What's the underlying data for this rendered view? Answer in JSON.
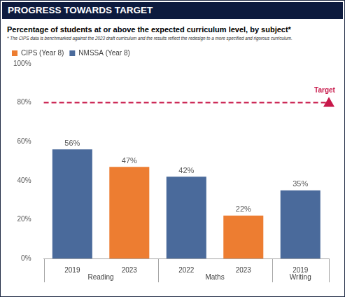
{
  "chart_data": {
    "type": "bar",
    "header": "PROGRESS TOWARDS TARGET",
    "title": "Percentage of students at or above the expected curriculum level, by subject*",
    "footnote": "* The CIPS data is benchmarked against the 2023 draft curriculum and the results reflect the redesign to a more specified and rigorous curriculum.",
    "categories": [
      "2019",
      "2023",
      "2022",
      "2023",
      "2019"
    ],
    "category_groups": [
      "Reading",
      "Reading",
      "Maths",
      "Maths",
      "Writing"
    ],
    "series": [
      {
        "name": "CIPS (Year 8)",
        "color": "#ed7d31",
        "values": [
          null,
          47,
          null,
          22,
          null
        ],
        "value_labels": [
          null,
          "47%",
          null,
          "22%",
          null
        ]
      },
      {
        "name": "NMSSA (Year 8)",
        "color": "#4a6a9b",
        "values": [
          56,
          null,
          42,
          null,
          35
        ],
        "value_labels": [
          "56%",
          null,
          "42%",
          null,
          "35%"
        ]
      }
    ],
    "ylim": [
      0,
      100
    ],
    "yticks": [
      {
        "value": 0,
        "label": "0%"
      },
      {
        "value": 20,
        "label": "20%"
      },
      {
        "value": 40,
        "label": "40%"
      },
      {
        "value": 60,
        "label": "60%"
      },
      {
        "value": 80,
        "label": "80%"
      },
      {
        "value": 100,
        "label": "100%"
      }
    ],
    "grid": false,
    "legend": "top-left",
    "data_labels": true,
    "annotations": [
      {
        "type": "line",
        "y": 80,
        "label": "Target",
        "color": "#c8184a",
        "line_style": "dashed"
      }
    ]
  }
}
